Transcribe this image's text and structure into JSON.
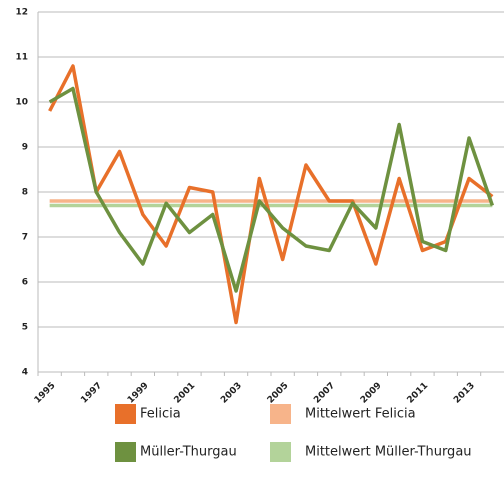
{
  "chart_data": {
    "type": "line",
    "categories": [
      "1995",
      null,
      "1997",
      null,
      "1999",
      null,
      "2001",
      null,
      "2003",
      null,
      "2005",
      null,
      "2007",
      null,
      "2009",
      null,
      "2011",
      null,
      "2013",
      null
    ],
    "series": [
      {
        "name": "Felicia",
        "color": "#e8702a",
        "values": [
          9.8,
          10.8,
          8.0,
          8.9,
          7.5,
          6.8,
          8.1,
          8.0,
          5.1,
          8.3,
          6.5,
          8.6,
          7.8,
          7.8,
          6.4,
          8.3,
          6.7,
          6.9,
          8.3,
          7.9
        ]
      },
      {
        "name": "Mittelwert Felicia",
        "color": "#f7b48a",
        "values": [
          7.8,
          7.8,
          7.8,
          7.8,
          7.8,
          7.8,
          7.8,
          7.8,
          7.8,
          7.8,
          7.8,
          7.8,
          7.8,
          7.8,
          7.8,
          7.8,
          7.8,
          7.8,
          7.8,
          7.8
        ]
      },
      {
        "name": "Müller-Thurgau",
        "color": "#6e9140",
        "values": [
          10.0,
          10.3,
          8.0,
          7.1,
          6.4,
          7.75,
          7.1,
          7.5,
          5.8,
          7.8,
          7.2,
          6.8,
          6.7,
          7.75,
          7.2,
          9.5,
          6.9,
          6.7,
          9.2,
          7.7
        ]
      },
      {
        "name": "Mittelwert Müller-Thurgau",
        "color": "#b3d39a",
        "values": [
          7.7,
          7.7,
          7.7,
          7.7,
          7.7,
          7.7,
          7.7,
          7.7,
          7.7,
          7.7,
          7.7,
          7.7,
          7.7,
          7.7,
          7.7,
          7.7,
          7.7,
          7.7,
          7.7,
          7.7
        ]
      }
    ],
    "ylim": [
      4,
      12
    ],
    "yticks": [
      4,
      5,
      6,
      7,
      8,
      9,
      10,
      11,
      12
    ],
    "grid": true
  }
}
